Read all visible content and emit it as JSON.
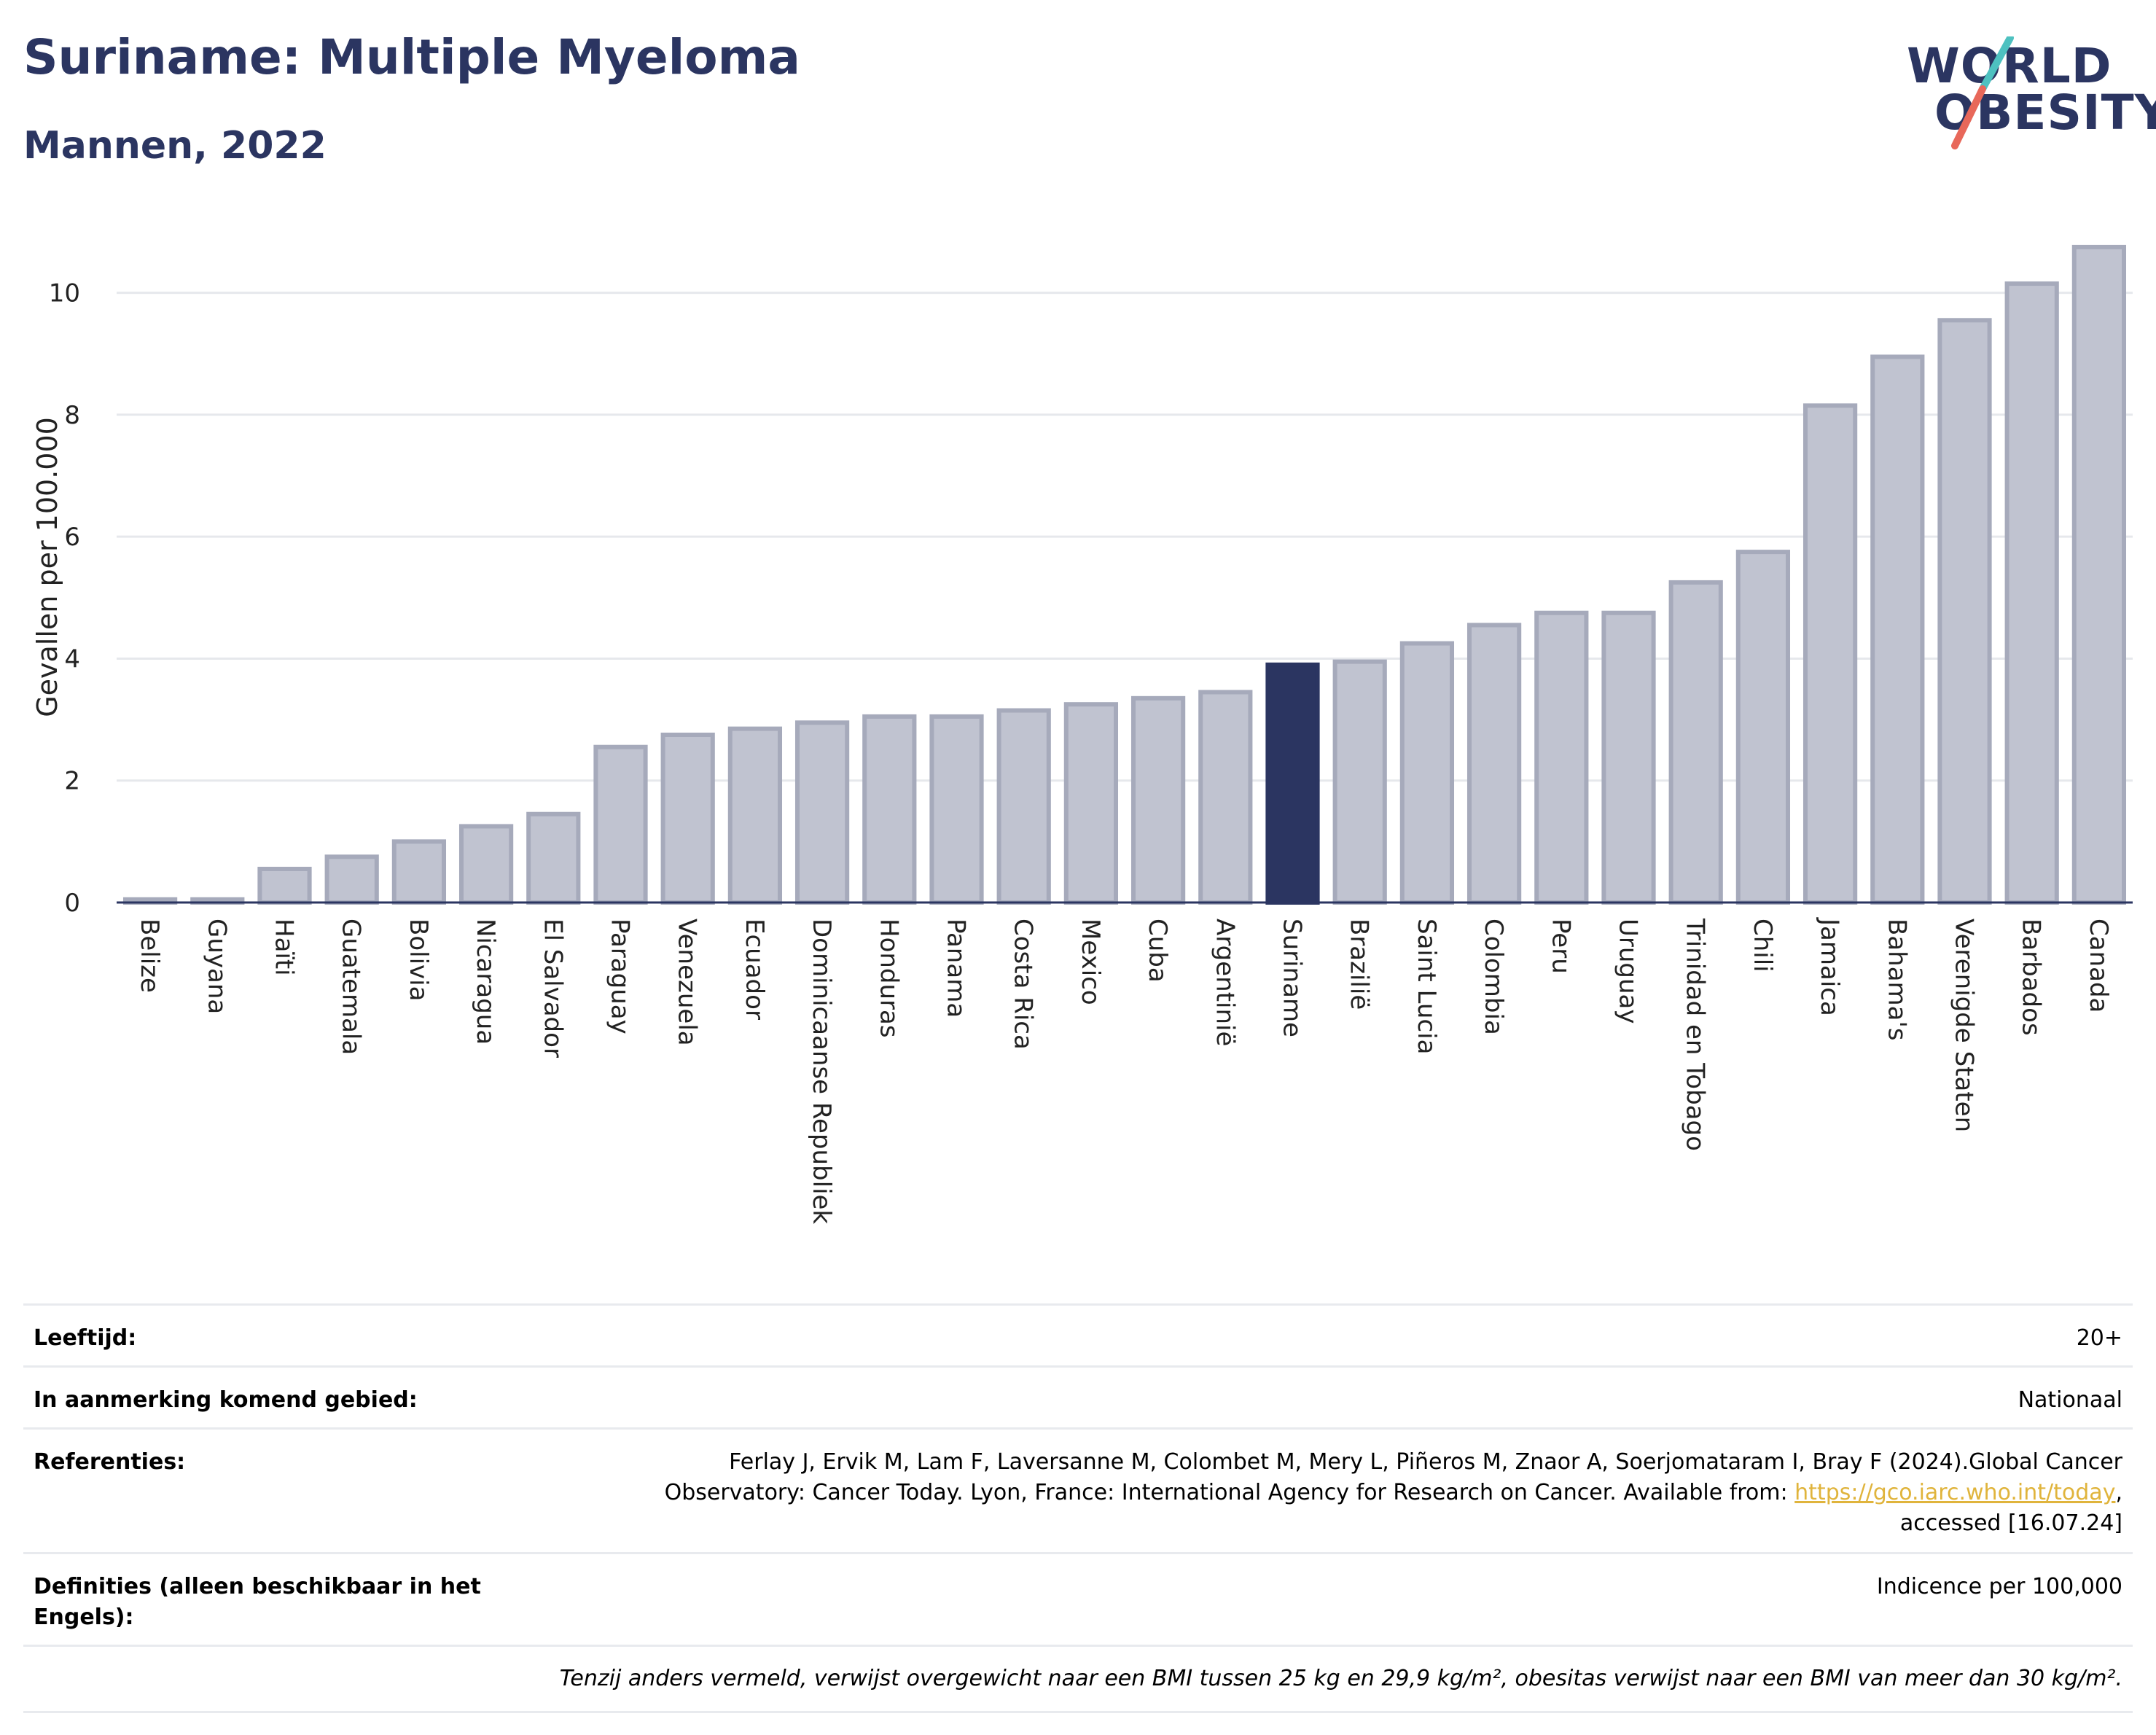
{
  "header": {
    "title": "Suriname: Multiple Myeloma",
    "subtitle": "Mannen, 2022"
  },
  "logo": {
    "line1": "WORLD",
    "line2": "OBESITY",
    "slash_colors": [
      "#4ec1c0",
      "#e8685a"
    ]
  },
  "colors": {
    "highlight": "#2b3561",
    "bar": "#c0c3d0",
    "bar_border": "#a6aabb",
    "grid": "#e6e8ec",
    "axis": "#2b3561"
  },
  "chart_data": {
    "type": "bar",
    "ylabel": "Gevallen per 100.000",
    "ylim": [
      0,
      11
    ],
    "yticks": [
      0,
      2,
      4,
      6,
      8,
      10
    ],
    "grid": true,
    "highlight": "Suriname",
    "categories": [
      "Belize",
      "Guyana",
      "Haïti",
      "Guatemala",
      "Bolivia",
      "Nicaragua",
      "El Salvador",
      "Paraguay",
      "Venezuela",
      "Ecuador",
      "Dominicaanse Republiek",
      "Honduras",
      "Panama",
      "Costa Rica",
      "Mexico",
      "Cuba",
      "Argentinië",
      "Suriname",
      "Brazilië",
      "Saint Lucia",
      "Colombia",
      "Peru",
      "Uruguay",
      "Trinidad en Tobago",
      "Chili",
      "Jamaica",
      "Bahama's",
      "Verenigde Staten",
      "Barbados",
      "Canada"
    ],
    "values": [
      0.05,
      0.05,
      0.55,
      0.75,
      1.0,
      1.25,
      1.45,
      2.55,
      2.75,
      2.85,
      2.95,
      3.05,
      3.05,
      3.15,
      3.25,
      3.35,
      3.45,
      3.9,
      3.95,
      4.25,
      4.55,
      4.75,
      4.75,
      5.25,
      5.75,
      8.15,
      8.95,
      9.55,
      10.15,
      10.75
    ]
  },
  "meta": {
    "age_label": "Leeftijd:",
    "age_value": "20+",
    "area_label": "In aanmerking komend gebied:",
    "area_value": "Nationaal",
    "refs_label": "Referenties:",
    "refs_line1": "Ferlay J, Ervik M, Lam F, Laversanne M, Colombet M, Mery L, Piñeros M, Znaor A, Soerjomataram I, Bray F (2024).Global Cancer",
    "refs_line2_pre": "Observatory: Cancer Today. Lyon, France: International Agency for Research on Cancer. Available from: ",
    "refs_link": "https://gco.iarc.who.int/today",
    "refs_line2_post": ",",
    "refs_line3": "accessed [16.07.24]",
    "defs_label": "Definities (alleen beschikbaar in het Engels):",
    "defs_value": "Indicence per 100,000",
    "note": "Tenzij anders vermeld, verwijst overgewicht naar een BMI tussen 25 kg en 29,9 kg/m², obesitas verwijst naar een BMI van meer dan 30 kg/m²."
  }
}
